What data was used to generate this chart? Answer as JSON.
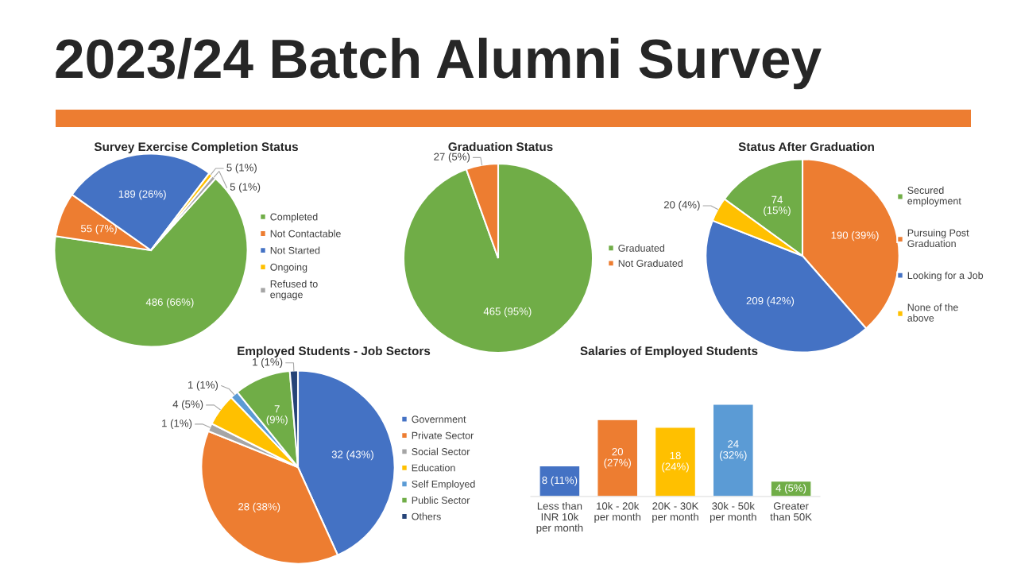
{
  "chart_data": [
    {
      "type": "other",
      "title": "2023/24 Batch Alumni Survey"
    },
    {
      "type": "pie",
      "title": "Survey Exercise Completion Status",
      "legend": "right",
      "categories": [
        "Completed",
        "Not Contactable",
        "Not Started",
        "Ongoing",
        "Refused to\nengage"
      ],
      "values": [
        486,
        55,
        189,
        5,
        5
      ],
      "value_labels": [
        "486 (66%)",
        "55 (7%)",
        "189 (26%)",
        "5 (1%)",
        "5 (1%)"
      ],
      "colors": [
        "#70ad47",
        "#ed7d31",
        "#4472c4",
        "#ffc000",
        "#a5a5a5"
      ]
    },
    {
      "type": "pie",
      "title": "Graduation Status",
      "legend": "right",
      "categories": [
        "Graduated",
        "Not Graduated"
      ],
      "values": [
        465,
        27
      ],
      "value_labels": [
        "465 (95%)",
        "27 (5%)"
      ],
      "colors": [
        "#70ad47",
        "#ed7d31"
      ]
    },
    {
      "type": "pie",
      "title": "Status After Graduation",
      "legend": "right",
      "categories": [
        "Secured\nemployment",
        "Pursuing Post\nGraduation",
        "Looking for a Job",
        "None of the\nabove"
      ],
      "values": [
        74,
        190,
        209,
        20
      ],
      "value_labels": [
        "74\n(15%)",
        "190 (39%)",
        "209 (42%)",
        "20 (4%)"
      ],
      "colors": [
        "#70ad47",
        "#ed7d31",
        "#4472c4",
        "#ffc000"
      ]
    },
    {
      "type": "pie",
      "title": "Employed Students - Job Sectors",
      "legend": "right",
      "categories": [
        "Government",
        "Private Sector",
        "Social Sector",
        "Education",
        "Self Employed",
        "Public Sector",
        "Others"
      ],
      "values": [
        32,
        28,
        1,
        4,
        1,
        7,
        1
      ],
      "value_labels": [
        "32 (43%)",
        "28 (38%)",
        "1 (1%)",
        "4 (5%)",
        "1 (1%)",
        "7\n(9%)",
        "1 (1%)"
      ],
      "colors": [
        "#4472c4",
        "#ed7d31",
        "#a5a5a5",
        "#ffc000",
        "#5b9bd5",
        "#70ad47",
        "#264478"
      ]
    },
    {
      "type": "bar",
      "title": "Salaries of Employed Students",
      "categories": [
        "Less than\nINR 10k\nper month",
        "10k - 20k\nper month",
        "20K - 30K\nper month",
        "30k - 50k\nper month",
        "Greater\nthan 50K"
      ],
      "values": [
        8,
        20,
        18,
        24,
        4
      ],
      "value_labels": [
        "8 (11%)",
        "20\n(27%)",
        "18\n(24%)",
        "24\n(32%)",
        "4 (5%)"
      ],
      "colors": [
        "#4472c4",
        "#ed7d31",
        "#ffc000",
        "#5b9bd5",
        "#70ad47"
      ]
    }
  ]
}
